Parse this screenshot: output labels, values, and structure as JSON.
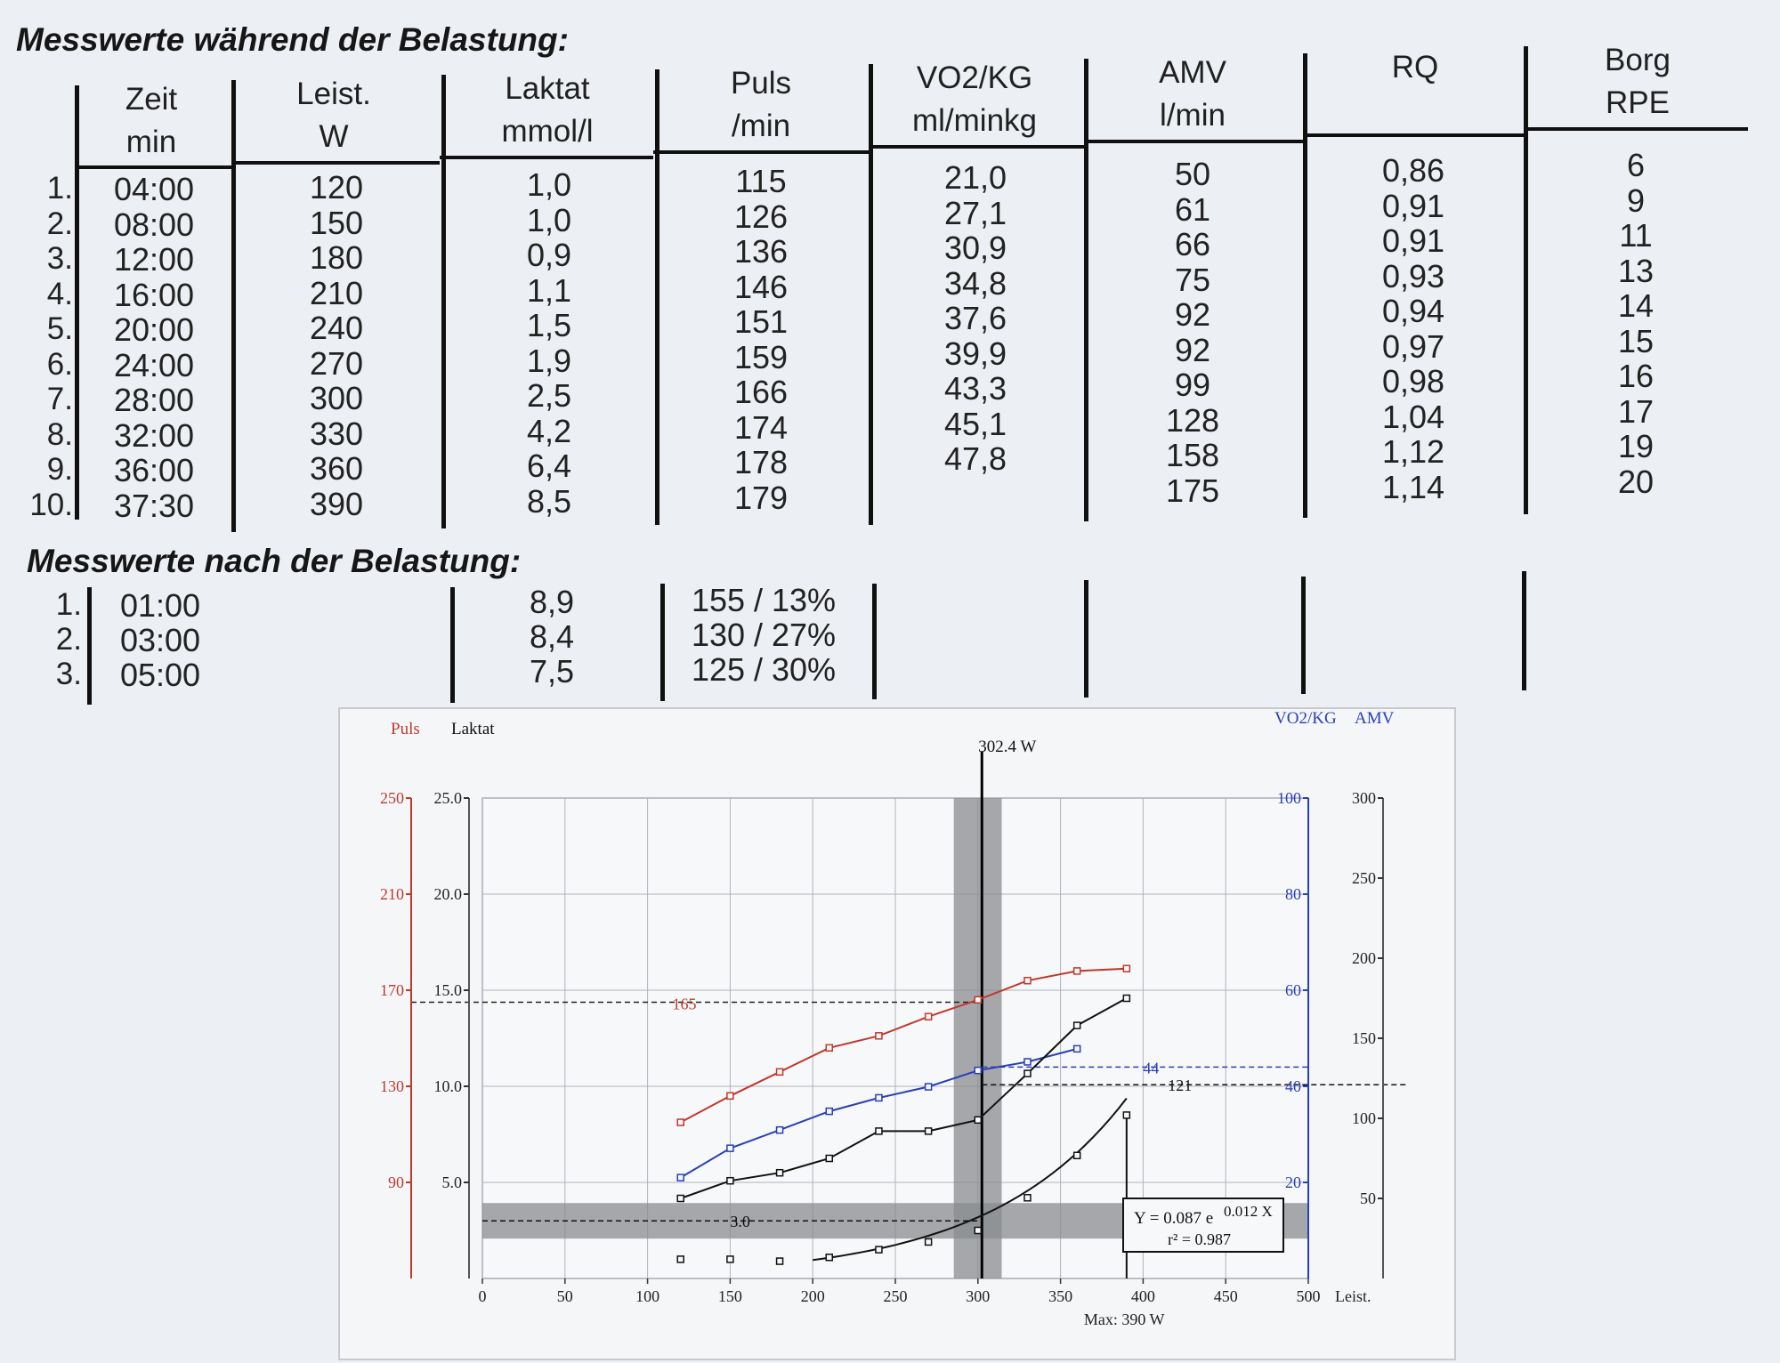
{
  "during": {
    "heading": "Messwerte während der Belastung:",
    "headers": [
      {
        "line1": "Zeit",
        "line2": "min"
      },
      {
        "line1": "Leist.",
        "line2": "W"
      },
      {
        "line1": "Laktat",
        "line2": "mmol/l"
      },
      {
        "line1": "Puls",
        "line2": "/min"
      },
      {
        "line1": "VO2/KG",
        "line2": "ml/minkg"
      },
      {
        "line1": "AMV",
        "line2": "l/min"
      },
      {
        "line1": "RQ",
        "line2": ""
      },
      {
        "line1": "Borg",
        "line2": "RPE"
      }
    ],
    "rows": [
      {
        "num": "1.",
        "zeit": "04:00",
        "leist": "120",
        "laktat": "1,0",
        "puls": "115",
        "vo2": "21,0",
        "amv": "50",
        "rq": "0,86",
        "borg": "6"
      },
      {
        "num": "2.",
        "zeit": "08:00",
        "leist": "150",
        "laktat": "1,0",
        "puls": "126",
        "vo2": "27,1",
        "amv": "61",
        "rq": "0,91",
        "borg": "9"
      },
      {
        "num": "3.",
        "zeit": "12:00",
        "leist": "180",
        "laktat": "0,9",
        "puls": "136",
        "vo2": "30,9",
        "amv": "66",
        "rq": "0,91",
        "borg": "11"
      },
      {
        "num": "4.",
        "zeit": "16:00",
        "leist": "210",
        "laktat": "1,1",
        "puls": "146",
        "vo2": "34,8",
        "amv": "75",
        "rq": "0,93",
        "borg": "13"
      },
      {
        "num": "5.",
        "zeit": "20:00",
        "leist": "240",
        "laktat": "1,5",
        "puls": "151",
        "vo2": "37,6",
        "amv": "92",
        "rq": "0,94",
        "borg": "14"
      },
      {
        "num": "6.",
        "zeit": "24:00",
        "leist": "270",
        "laktat": "1,9",
        "puls": "159",
        "vo2": "39,9",
        "amv": "92",
        "rq": "0,97",
        "borg": "15"
      },
      {
        "num": "7.",
        "zeit": "28:00",
        "leist": "300",
        "laktat": "2,5",
        "puls": "166",
        "vo2": "43,3",
        "amv": "99",
        "rq": "0,98",
        "borg": "16"
      },
      {
        "num": "8.",
        "zeit": "32:00",
        "leist": "330",
        "laktat": "4,2",
        "puls": "174",
        "vo2": "45,1",
        "amv": "128",
        "rq": "1,04",
        "borg": "17"
      },
      {
        "num": "9.",
        "zeit": "36:00",
        "leist": "360",
        "laktat": "6,4",
        "puls": "178",
        "vo2": "47,8",
        "amv": "158",
        "rq": "1,12",
        "borg": "19"
      },
      {
        "num": "10.",
        "zeit": "37:30",
        "leist": "390",
        "laktat": "8,5",
        "puls": "179",
        "vo2": "",
        "amv": "175",
        "rq": "1,14",
        "borg": "20"
      }
    ]
  },
  "after": {
    "heading": "Messwerte nach der Belastung:",
    "rows": [
      {
        "num": "1.",
        "zeit": "01:00",
        "laktat": "8,9",
        "puls": "155 / 13%"
      },
      {
        "num": "2.",
        "zeit": "03:00",
        "laktat": "8,4",
        "puls": "130 / 27%"
      },
      {
        "num": "3.",
        "zeit": "05:00",
        "laktat": "7,5",
        "puls": "125 / 30%"
      }
    ]
  },
  "chart_data": {
    "type": "line",
    "labels": {
      "puls": "Puls",
      "laktat": "Laktat",
      "vo2kg": "VO2/KG",
      "amv": "AMV",
      "xlabel": "Leist.",
      "max": "Max: 390 W",
      "threshold": "302.4 W",
      "formula_main": "Y = 0.087 e",
      "formula_exp": "0.012 X",
      "formula_r2": "r² = 0.987",
      "mark_puls": "165",
      "mark_laktat": "3.0",
      "mark_vo2": "44",
      "mark_amv": "121"
    },
    "x_ticks": [
      "0",
      "50",
      "100",
      "150",
      "200",
      "250",
      "300",
      "350",
      "400",
      "450",
      "500"
    ],
    "puls_ticks": [
      "250",
      "210",
      "170",
      "130",
      "90"
    ],
    "laktat_ticks": [
      "25.0",
      "20.0",
      "15.0",
      "10.0",
      "5.0"
    ],
    "vo2_ticks": [
      "100",
      "80",
      "60",
      "40",
      "20"
    ],
    "amv_ticks": [
      "300",
      "250",
      "200",
      "150",
      "100",
      "50"
    ],
    "xlim": [
      0,
      500
    ],
    "ylim_puls": [
      50,
      250
    ],
    "ylim_laktat": [
      0,
      25
    ],
    "ylim_vo2": [
      0,
      100
    ],
    "ylim_amv": [
      0,
      300
    ],
    "threshold_x": 302.4,
    "grid": true,
    "colors": {
      "puls": "#c0392b",
      "vo2": "#2a3fb8",
      "laktat": "#111111",
      "amv": "#111111",
      "band": "#8a8c8f"
    },
    "series": [
      {
        "name": "Puls",
        "axis": "puls",
        "x": [
          120,
          150,
          180,
          210,
          240,
          270,
          300,
          330,
          360,
          390
        ],
        "values": [
          115,
          126,
          136,
          146,
          151,
          159,
          166,
          174,
          178,
          179
        ]
      },
      {
        "name": "Laktat",
        "axis": "laktat",
        "x": [
          120,
          150,
          180,
          210,
          240,
          270,
          300,
          330,
          360,
          390
        ],
        "values": [
          1.0,
          1.0,
          0.9,
          1.1,
          1.5,
          1.9,
          2.5,
          4.2,
          6.4,
          8.5
        ]
      },
      {
        "name": "VO2/KG",
        "axis": "vo2",
        "x": [
          120,
          150,
          180,
          210,
          240,
          270,
          300,
          330,
          360
        ],
        "values": [
          21.0,
          27.1,
          30.9,
          34.8,
          37.6,
          39.9,
          43.3,
          45.1,
          47.8
        ]
      },
      {
        "name": "AMV",
        "axis": "amv",
        "x": [
          120,
          150,
          180,
          210,
          240,
          270,
          300,
          330,
          360,
          390
        ],
        "values": [
          50,
          61,
          66,
          75,
          92,
          92,
          99,
          128,
          158,
          175
        ]
      }
    ]
  }
}
